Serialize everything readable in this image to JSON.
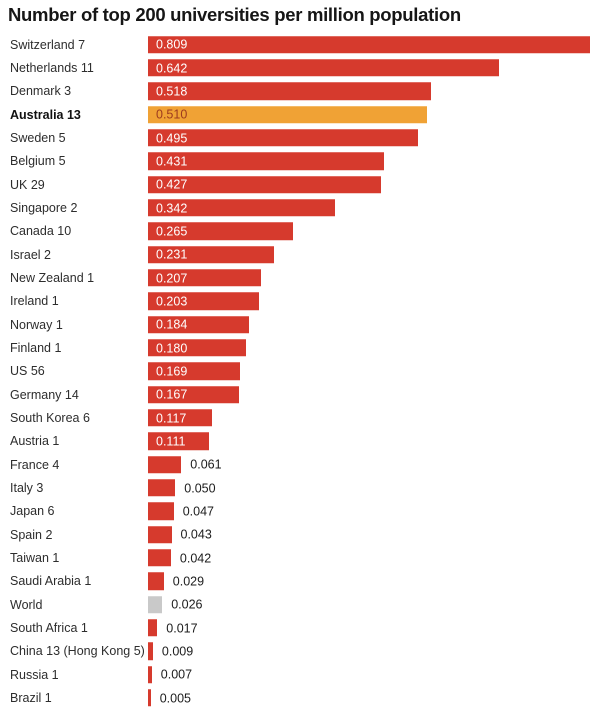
{
  "title": "Number of top 200 universities per million population",
  "colors": {
    "bar_default": "#d63a2d",
    "bar_highlight": "#f0a235",
    "bar_neutral": "#c9c9c9",
    "value_inside": "#ffffff",
    "value_on_highlight": "#9c3a1f",
    "value_outside": "#1c1c1c"
  },
  "chart_data": {
    "type": "bar",
    "orientation": "horizontal",
    "title": "Number of top 200 universities per million population",
    "xlabel": "",
    "ylabel": "",
    "xlim": [
      0,
      0.809
    ],
    "grid": false,
    "legend": false,
    "highlight_category": "Australia 13",
    "neutral_category": "World",
    "rows": [
      {
        "label": "Switzerland 7",
        "value": 0.809,
        "display": "0.809",
        "style": "default"
      },
      {
        "label": "Netherlands 11",
        "value": 0.642,
        "display": "0.642",
        "style": "default"
      },
      {
        "label": "Denmark 3",
        "value": 0.518,
        "display": "0.518",
        "style": "default"
      },
      {
        "label": "Australia 13",
        "value": 0.51,
        "display": "0.510",
        "style": "highlight"
      },
      {
        "label": "Sweden 5",
        "value": 0.495,
        "display": "0.495",
        "style": "default"
      },
      {
        "label": "Belgium 5",
        "value": 0.431,
        "display": "0.431",
        "style": "default"
      },
      {
        "label": "UK 29",
        "value": 0.427,
        "display": "0.427",
        "style": "default"
      },
      {
        "label": "Singapore 2",
        "value": 0.342,
        "display": "0.342",
        "style": "default"
      },
      {
        "label": "Canada 10",
        "value": 0.265,
        "display": "0.265",
        "style": "default"
      },
      {
        "label": "Israel 2",
        "value": 0.231,
        "display": "0.231",
        "style": "default"
      },
      {
        "label": "New Zealand 1",
        "value": 0.207,
        "display": "0.207",
        "style": "default"
      },
      {
        "label": "Ireland 1",
        "value": 0.203,
        "display": "0.203",
        "style": "default"
      },
      {
        "label": "Norway 1",
        "value": 0.184,
        "display": "0.184",
        "style": "default"
      },
      {
        "label": "Finland 1",
        "value": 0.18,
        "display": "0.180",
        "style": "default"
      },
      {
        "label": "US 56",
        "value": 0.169,
        "display": "0.169",
        "style": "default"
      },
      {
        "label": "Germany 14",
        "value": 0.167,
        "display": "0.167",
        "style": "default"
      },
      {
        "label": "South Korea 6",
        "value": 0.117,
        "display": "0.117",
        "style": "default"
      },
      {
        "label": "Austria 1",
        "value": 0.111,
        "display": "0.111",
        "style": "default"
      },
      {
        "label": "France 4",
        "value": 0.061,
        "display": "0.061",
        "style": "default"
      },
      {
        "label": "Italy 3",
        "value": 0.05,
        "display": "0.050",
        "style": "default"
      },
      {
        "label": "Japan 6",
        "value": 0.047,
        "display": "0.047",
        "style": "default"
      },
      {
        "label": "Spain 2",
        "value": 0.043,
        "display": "0.043",
        "style": "default"
      },
      {
        "label": "Taiwan 1",
        "value": 0.042,
        "display": "0.042",
        "style": "default"
      },
      {
        "label": "Saudi Arabia 1",
        "value": 0.029,
        "display": "0.029",
        "style": "default"
      },
      {
        "label": "World",
        "value": 0.026,
        "display": "0.026",
        "style": "neutral"
      },
      {
        "label": "South Africa 1",
        "value": 0.017,
        "display": "0.017",
        "style": "default"
      },
      {
        "label": "China 13 (Hong Kong 5)",
        "value": 0.009,
        "display": "0.009",
        "style": "default"
      },
      {
        "label": "Russia 1",
        "value": 0.007,
        "display": "0.007",
        "style": "default"
      },
      {
        "label": "Brazil 1",
        "value": 0.005,
        "display": "0.005",
        "style": "default"
      }
    ]
  }
}
